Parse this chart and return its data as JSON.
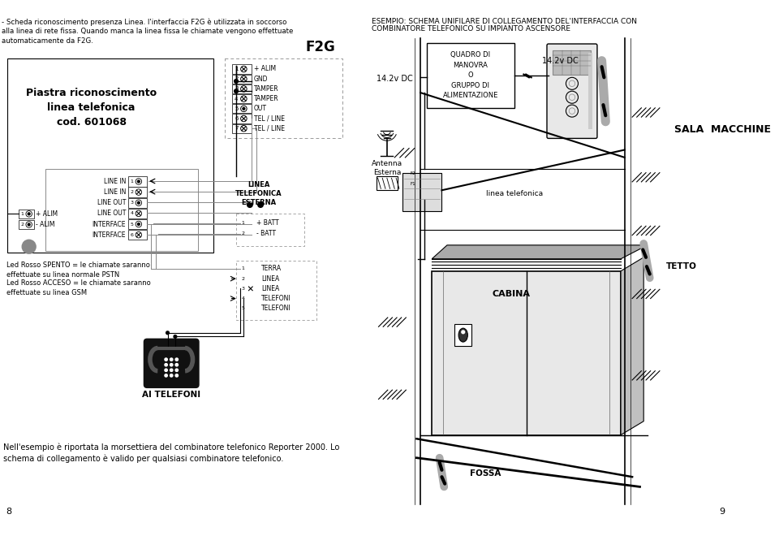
{
  "title_left": "- Scheda riconoscimento presenza Linea. l'interfaccia F2G è utilizzata in soccorso\nalla linea di rete fissa. Quando manca la linea fissa le chiamate vengono effettuate\nautomaticamente da F2G.",
  "title_right_line1": "ESEMPIO: SCHEMA UNIFILARE DI COLLEGAMENTO DEL'INTERFACCIA CON",
  "title_right_line2": "COMBINATORE TELEFONICO SU IMPIANTO ASCENSORE",
  "f2g_label": "F2G",
  "f2g_terminals": [
    "1",
    "2",
    "3",
    "4",
    "5",
    "6",
    "7"
  ],
  "f2g_terminal_labels": [
    "+ ALIM",
    "GND",
    "TAMPER",
    "TAMPER",
    "OUT",
    "TEL / LINE",
    "TEL / LINE"
  ],
  "piastra_title": "Piastra riconoscimento\nlinea telefonica\ncod. 601068",
  "linea_label": "LINEA\nTELEFONICA\nESTERNA",
  "left_terminal_labels": [
    "LINE IN",
    "LINE IN",
    "LINE OUT",
    "LINE OUT",
    "INTERFACE",
    "INTERFACE"
  ],
  "left_terminal_nums": [
    "1",
    "2",
    "3",
    "4",
    "5",
    "6"
  ],
  "alim_labels": [
    "+ ALIM",
    "- ALIM"
  ],
  "batt_labels": [
    "+ BATT",
    "- BATT"
  ],
  "bottom_terminal_labels": [
    "TERRA",
    "LINEA",
    "LINEA",
    "TELEFONI",
    "TELEFONI"
  ],
  "bottom_terminal_nums": [
    "1",
    "2",
    "3",
    "4",
    "5"
  ],
  "ai_telefoni": "AI TELEFONI",
  "led_text1": "Led Rosso SPENTO = le chiamate saranno\neffettuate su linea normale PSTN",
  "led_text2": "Led Rosso ACCESO = le chiamate saranno\neffettuate su linea GSM",
  "footer_text": "Nell'esempio è riportata la morsettiera del combinatore telefonico Reporter 2000. Lo\nschema di collegamento è valido per qualsiasi combinatore telefonico.",
  "quadro_label": "QUADRO DI\nMANOVRA\nO\nGRUPPO DI\nALIMENTAZIONE",
  "dc_label1": "14.2v DC",
  "dc_label2": "14.2v DC",
  "antenna_label": "Antenna\nEsterna",
  "sala_label": "SALA  MACCHINE",
  "tetto_label": "TETTO",
  "cabina_label": "CABINA",
  "fossa_label": "FOSSA",
  "linea_tel_label": "linea telefonica",
  "page_nums": [
    "8",
    "9"
  ],
  "bg_color": "#ffffff",
  "line_color": "#000000",
  "text_color": "#000000"
}
